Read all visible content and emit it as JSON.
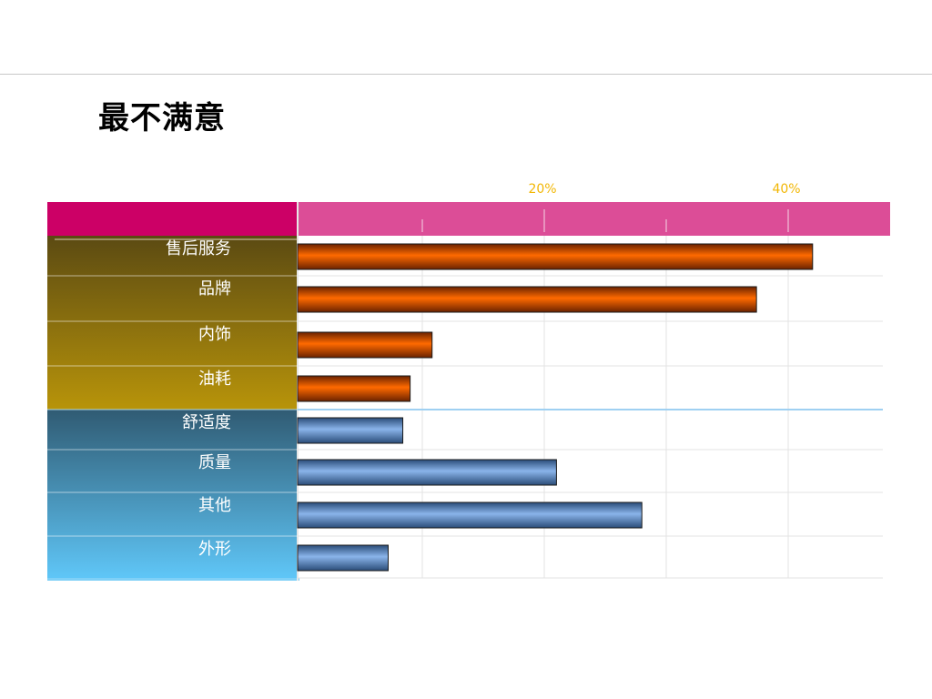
{
  "title": "最不满意",
  "colors": {
    "header_left": "#cc0066",
    "header_right": "#dc4d97",
    "tick_label": "#f2b705",
    "bar_group1": "#ff6a00",
    "bar_group2": "#8ab4ea",
    "panel_group1_top": "#5b4a12",
    "panel_group1_bottom": "#b8940a",
    "panel_group2_top": "#305b73",
    "panel_group2_bottom": "#5fc6f7"
  },
  "chart_data": {
    "type": "bar",
    "orientation": "horizontal",
    "title": "最不满意",
    "categories": [
      "售后服务",
      "品牌",
      "内饰",
      "油耗",
      "舒适度",
      "质量",
      "其他",
      "外形"
    ],
    "values": [
      42.0,
      37.4,
      10.8,
      9.0,
      8.4,
      21.0,
      28.0,
      7.2
    ],
    "groups": [
      {
        "categories": [
          "售后服务",
          "品牌",
          "内饰",
          "油耗"
        ],
        "color": "#ff6a00"
      },
      {
        "categories": [
          "舒适度",
          "质量",
          "其他",
          "外形"
        ],
        "color": "#8ab4ea"
      }
    ],
    "xlim": [
      0,
      48
    ],
    "x_ticks": [
      {
        "value": 20,
        "label": "20%"
      },
      {
        "value": 40,
        "label": "40%"
      }
    ],
    "grid": true,
    "xlabel": "",
    "ylabel": ""
  }
}
